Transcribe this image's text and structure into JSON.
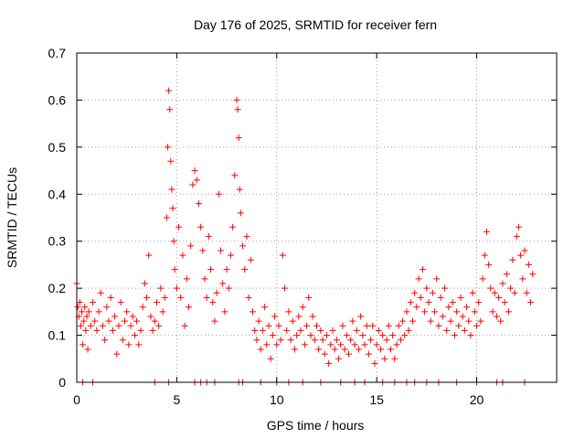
{
  "chart_data": {
    "type": "scatter",
    "title": "Day 176 of 2025, SRMTID for receiver fern",
    "xlabel": "GPS time / hours",
    "ylabel": "SRMTID / TECUs",
    "xlim": [
      0,
      24
    ],
    "ylim": [
      0,
      0.7
    ],
    "xticks": [
      0,
      5,
      10,
      15,
      20
    ],
    "xtick_labels": [
      "0",
      "5",
      "10",
      "15",
      "20"
    ],
    "yticks": [
      0,
      0.1,
      0.2,
      0.3,
      0.4,
      0.5,
      0.6,
      0.7
    ],
    "ytick_labels": [
      "0",
      "0.1",
      "0.2",
      "0.3",
      "0.4",
      "0.5",
      "0.6",
      "0.7"
    ],
    "grid": true,
    "marker": "+",
    "color": "#ff0000",
    "series": [
      {
        "name": "SRMTID",
        "points": [
          [
            0.0,
            0.21
          ],
          [
            0.05,
            0.16
          ],
          [
            0.1,
            0.14
          ],
          [
            0.15,
            0.17
          ],
          [
            0.2,
            0.12
          ],
          [
            0.25,
            0.15
          ],
          [
            0.3,
            0.08
          ],
          [
            0.35,
            0.13
          ],
          [
            0.4,
            0.16
          ],
          [
            0.45,
            0.11
          ],
          [
            0.5,
            0.14
          ],
          [
            0.55,
            0.07
          ],
          [
            0.6,
            0.15
          ],
          [
            0.7,
            0.12
          ],
          [
            0.8,
            0.17
          ],
          [
            0.9,
            0.13
          ],
          [
            1.0,
            0.11
          ],
          [
            1.1,
            0.15
          ],
          [
            1.2,
            0.19
          ],
          [
            1.3,
            0.12
          ],
          [
            1.4,
            0.09
          ],
          [
            1.5,
            0.16
          ],
          [
            1.6,
            0.13
          ],
          [
            1.7,
            0.18
          ],
          [
            1.8,
            0.11
          ],
          [
            1.9,
            0.14
          ],
          [
            2.0,
            0.06
          ],
          [
            2.1,
            0.12
          ],
          [
            2.2,
            0.17
          ],
          [
            2.3,
            0.09
          ],
          [
            2.4,
            0.13
          ],
          [
            2.5,
            0.15
          ],
          [
            2.6,
            0.08
          ],
          [
            2.7,
            0.12
          ],
          [
            2.8,
            0.14
          ],
          [
            2.9,
            0.1
          ],
          [
            3.0,
            0.13
          ],
          [
            3.1,
            0.08
          ],
          [
            3.2,
            0.11
          ],
          [
            3.3,
            0.16
          ],
          [
            3.4,
            0.21
          ],
          [
            3.5,
            0.18
          ],
          [
            3.6,
            0.27
          ],
          [
            3.7,
            0.14
          ],
          [
            3.8,
            0.11
          ],
          [
            3.9,
            0.13
          ],
          [
            4.0,
            0.17
          ],
          [
            4.1,
            0.12
          ],
          [
            4.2,
            0.2
          ],
          [
            4.3,
            0.15
          ],
          [
            4.4,
            0.18
          ],
          [
            4.5,
            0.35
          ],
          [
            4.55,
            0.5
          ],
          [
            4.6,
            0.62
          ],
          [
            4.65,
            0.58
          ],
          [
            4.7,
            0.47
          ],
          [
            4.75,
            0.41
          ],
          [
            4.8,
            0.37
          ],
          [
            4.85,
            0.3
          ],
          [
            4.9,
            0.24
          ],
          [
            5.0,
            0.2
          ],
          [
            5.1,
            0.33
          ],
          [
            5.2,
            0.18
          ],
          [
            5.3,
            0.27
          ],
          [
            5.4,
            0.12
          ],
          [
            5.5,
            0.22
          ],
          [
            5.6,
            0.16
          ],
          [
            5.7,
            0.29
          ],
          [
            5.8,
            0.42
          ],
          [
            5.9,
            0.45
          ],
          [
            6.0,
            0.43
          ],
          [
            6.1,
            0.38
          ],
          [
            6.2,
            0.33
          ],
          [
            6.3,
            0.28
          ],
          [
            6.4,
            0.22
          ],
          [
            6.5,
            0.18
          ],
          [
            6.6,
            0.31
          ],
          [
            6.7,
            0.24
          ],
          [
            6.8,
            0.17
          ],
          [
            6.9,
            0.13
          ],
          [
            7.0,
            0.19
          ],
          [
            7.1,
            0.4
          ],
          [
            7.2,
            0.28
          ],
          [
            7.3,
            0.21
          ],
          [
            7.4,
            0.15
          ],
          [
            7.5,
            0.24
          ],
          [
            7.6,
            0.2
          ],
          [
            7.7,
            0.27
          ],
          [
            7.8,
            0.33
          ],
          [
            7.9,
            0.44
          ],
          [
            8.0,
            0.6
          ],
          [
            8.05,
            0.58
          ],
          [
            8.1,
            0.52
          ],
          [
            8.15,
            0.41
          ],
          [
            8.2,
            0.36
          ],
          [
            8.3,
            0.29
          ],
          [
            8.4,
            0.24
          ],
          [
            8.5,
            0.31
          ],
          [
            8.6,
            0.18
          ],
          [
            8.7,
            0.26
          ],
          [
            8.8,
            0.15
          ],
          [
            8.9,
            0.11
          ],
          [
            9.0,
            0.09
          ],
          [
            9.1,
            0.13
          ],
          [
            9.2,
            0.07
          ],
          [
            9.3,
            0.11
          ],
          [
            9.4,
            0.16
          ],
          [
            9.5,
            0.08
          ],
          [
            9.6,
            0.12
          ],
          [
            9.7,
            0.05
          ],
          [
            9.8,
            0.1
          ],
          [
            9.9,
            0.14
          ],
          [
            10.0,
            0.08
          ],
          [
            10.1,
            0.12
          ],
          [
            10.2,
            0.09
          ],
          [
            10.3,
            0.27
          ],
          [
            10.4,
            0.2
          ],
          [
            10.5,
            0.11
          ],
          [
            10.6,
            0.15
          ],
          [
            10.7,
            0.09
          ],
          [
            10.8,
            0.13
          ],
          [
            10.9,
            0.07
          ],
          [
            11.0,
            0.1
          ],
          [
            11.1,
            0.14
          ],
          [
            11.2,
            0.11
          ],
          [
            11.3,
            0.16
          ],
          [
            11.4,
            0.08
          ],
          [
            11.5,
            0.12
          ],
          [
            11.6,
            0.18
          ],
          [
            11.7,
            0.1
          ],
          [
            11.8,
            0.14
          ],
          [
            11.9,
            0.09
          ],
          [
            12.0,
            0.12
          ],
          [
            12.1,
            0.07
          ],
          [
            12.2,
            0.11
          ],
          [
            12.3,
            0.09
          ],
          [
            12.4,
            0.06
          ],
          [
            12.5,
            0.1
          ],
          [
            12.6,
            0.04
          ],
          [
            12.7,
            0.08
          ],
          [
            12.8,
            0.11
          ],
          [
            12.9,
            0.07
          ],
          [
            13.0,
            0.09
          ],
          [
            13.1,
            0.05
          ],
          [
            13.2,
            0.08
          ],
          [
            13.3,
            0.12
          ],
          [
            13.4,
            0.07
          ],
          [
            13.5,
            0.1
          ],
          [
            13.6,
            0.06
          ],
          [
            13.7,
            0.09
          ],
          [
            13.8,
            0.13
          ],
          [
            13.9,
            0.08
          ],
          [
            14.0,
            0.11
          ],
          [
            14.1,
            0.07
          ],
          [
            14.2,
            0.14
          ],
          [
            14.3,
            0.1
          ],
          [
            14.4,
            0.08
          ],
          [
            14.5,
            0.12
          ],
          [
            14.6,
            0.06
          ],
          [
            14.7,
            0.09
          ],
          [
            14.8,
            0.12
          ],
          [
            14.9,
            0.04
          ],
          [
            15.0,
            0.08
          ],
          [
            15.1,
            0.11
          ],
          [
            15.2,
            0.07
          ],
          [
            15.3,
            0.1
          ],
          [
            15.4,
            0.05
          ],
          [
            15.5,
            0.09
          ],
          [
            15.6,
            0.12
          ],
          [
            15.7,
            0.07
          ],
          [
            15.8,
            0.1
          ],
          [
            15.9,
            0.05
          ],
          [
            16.0,
            0.08
          ],
          [
            16.1,
            0.12
          ],
          [
            16.2,
            0.09
          ],
          [
            16.3,
            0.13
          ],
          [
            16.4,
            0.1
          ],
          [
            16.5,
            0.15
          ],
          [
            16.6,
            0.11
          ],
          [
            16.7,
            0.17
          ],
          [
            16.8,
            0.13
          ],
          [
            16.9,
            0.19
          ],
          [
            17.0,
            0.16
          ],
          [
            17.1,
            0.22
          ],
          [
            17.2,
            0.18
          ],
          [
            17.3,
            0.24
          ],
          [
            17.4,
            0.15
          ],
          [
            17.5,
            0.2
          ],
          [
            17.6,
            0.17
          ],
          [
            17.7,
            0.13
          ],
          [
            17.8,
            0.19
          ],
          [
            17.9,
            0.15
          ],
          [
            18.0,
            0.22
          ],
          [
            18.1,
            0.12
          ],
          [
            18.2,
            0.18
          ],
          [
            18.3,
            0.14
          ],
          [
            18.4,
            0.2
          ],
          [
            18.5,
            0.11
          ],
          [
            18.6,
            0.16
          ],
          [
            18.7,
            0.13
          ],
          [
            18.8,
            0.17
          ],
          [
            18.9,
            0.1
          ],
          [
            19.0,
            0.15
          ],
          [
            19.1,
            0.12
          ],
          [
            19.2,
            0.18
          ],
          [
            19.3,
            0.14
          ],
          [
            19.4,
            0.11
          ],
          [
            19.5,
            0.16
          ],
          [
            19.6,
            0.13
          ],
          [
            19.7,
            0.1
          ],
          [
            19.8,
            0.19
          ],
          [
            19.9,
            0.15
          ],
          [
            20.0,
            0.12
          ],
          [
            20.1,
            0.17
          ],
          [
            20.2,
            0.13
          ],
          [
            20.3,
            0.22
          ],
          [
            20.4,
            0.27
          ],
          [
            20.5,
            0.32
          ],
          [
            20.6,
            0.25
          ],
          [
            20.7,
            0.2
          ],
          [
            20.8,
            0.15
          ],
          [
            20.9,
            0.19
          ],
          [
            21.0,
            0.14
          ],
          [
            21.1,
            0.18
          ],
          [
            21.2,
            0.13
          ],
          [
            21.3,
            0.21
          ],
          [
            21.4,
            0.17
          ],
          [
            21.5,
            0.23
          ],
          [
            21.6,
            0.15
          ],
          [
            21.7,
            0.2
          ],
          [
            21.8,
            0.26
          ],
          [
            21.9,
            0.19
          ],
          [
            22.0,
            0.31
          ],
          [
            22.1,
            0.33
          ],
          [
            22.2,
            0.27
          ],
          [
            22.3,
            0.22
          ],
          [
            22.4,
            0.28
          ],
          [
            22.5,
            0.19
          ],
          [
            22.6,
            0.25
          ],
          [
            22.7,
            0.17
          ],
          [
            22.8,
            0.23
          ]
        ]
      }
    ],
    "baseline_markers": [
      0.3,
      0.8,
      3.9,
      4.6,
      5.9,
      6.2,
      6.5,
      6.9,
      8.1,
      8.3,
      9.2,
      10.0,
      10.6,
      11.3,
      12.2,
      13.2,
      13.9,
      14.4,
      15.3,
      15.9,
      16.5,
      16.9,
      17.5,
      18.1,
      19.0,
      20.0,
      21.0,
      21.3,
      22.4
    ]
  }
}
